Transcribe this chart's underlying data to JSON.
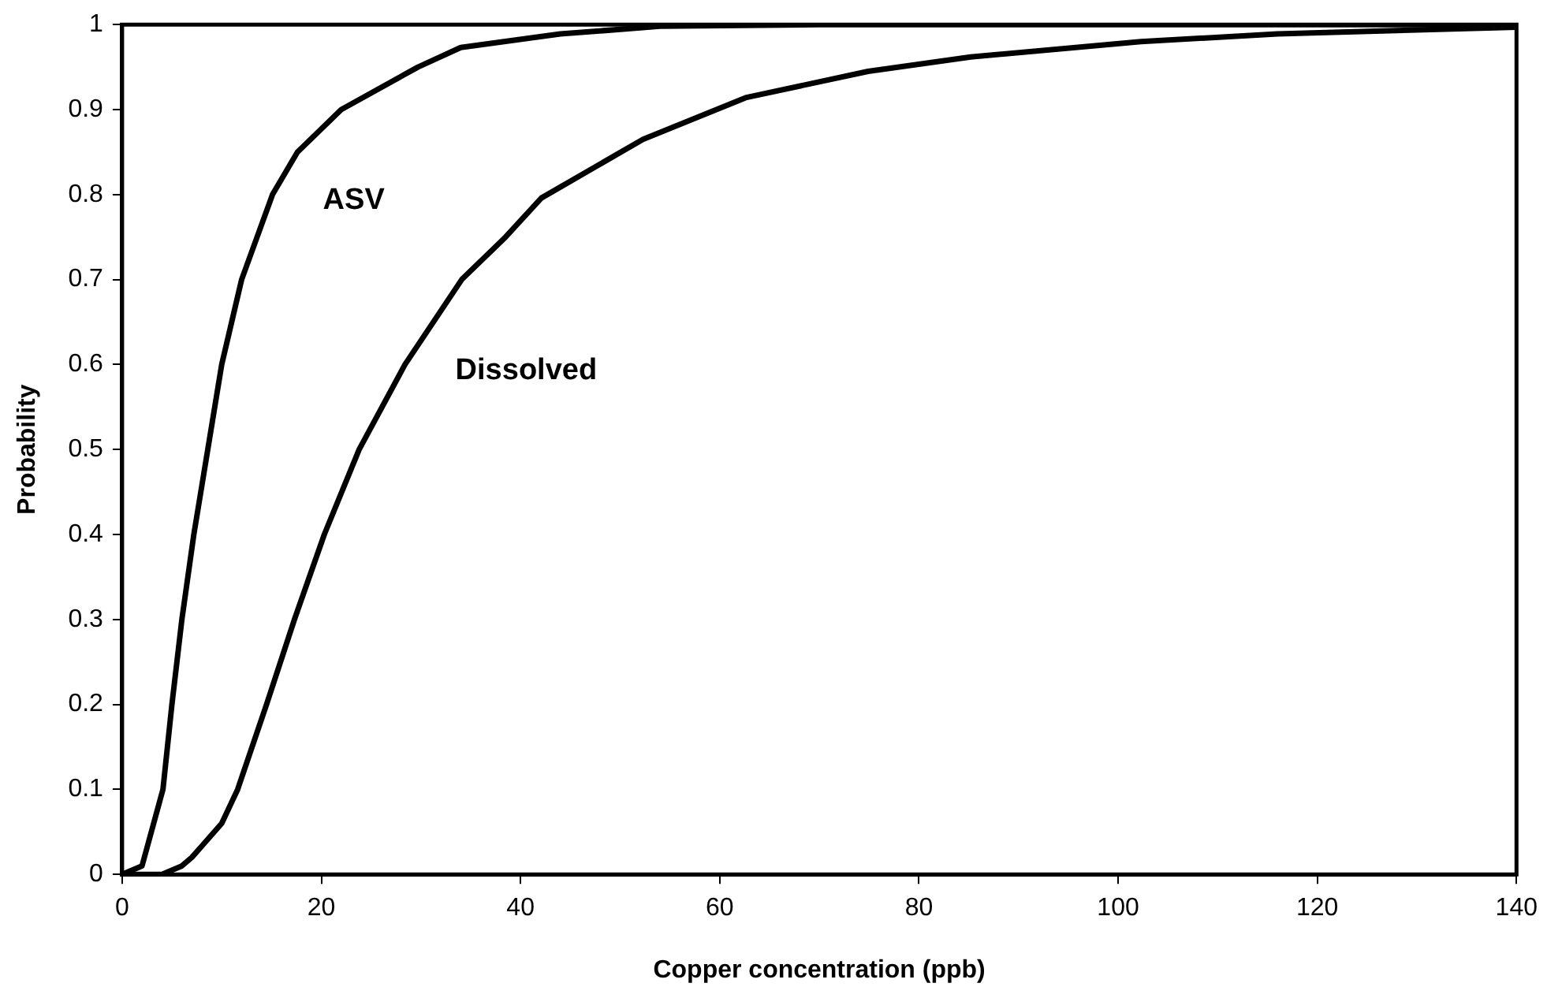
{
  "chart_data": {
    "type": "line",
    "xlabel": "Copper concentration (ppb)",
    "ylabel": "Probability",
    "xlim": [
      0,
      140
    ],
    "xticks": [
      0,
      20,
      40,
      60,
      80,
      100,
      120,
      140
    ],
    "ylim": [
      0,
      1
    ],
    "yticks": [
      0,
      0.1,
      0.2,
      0.3,
      0.4,
      0.5,
      0.6,
      0.7,
      0.8,
      0.9,
      1
    ],
    "grid": false,
    "legend": false,
    "marker": "none",
    "line_style": "solid",
    "series": [
      {
        "name": "ASV",
        "color": "#000000",
        "x": [
          0,
          2,
          4.1,
          5,
          6,
          7.2,
          8.6,
          10,
          12,
          15.1,
          17.6,
          22,
          29.7,
          34,
          44,
          54,
          70,
          140
        ],
        "values": [
          0,
          0.01,
          0.1,
          0.2,
          0.3,
          0.4,
          0.5,
          0.6,
          0.7,
          0.8,
          0.85,
          0.9,
          0.95,
          0.973,
          0.989,
          0.998,
          1,
          1
        ]
      },
      {
        "name": "Dissolved",
        "color": "#000000",
        "x": [
          0,
          4,
          6,
          7,
          10,
          11.6,
          14.5,
          17.3,
          20.3,
          23.8,
          28.4,
          34.1,
          38.5,
          42.1,
          52.3,
          62.6,
          74.9,
          85.2,
          102.3,
          116,
          140
        ],
        "values": [
          0,
          0,
          0.01,
          0.02,
          0.06,
          0.1,
          0.2,
          0.3,
          0.4,
          0.5,
          0.6,
          0.7,
          0.75,
          0.796,
          0.865,
          0.914,
          0.945,
          0.962,
          0.98,
          0.989,
          0.997
        ]
      }
    ]
  }
}
